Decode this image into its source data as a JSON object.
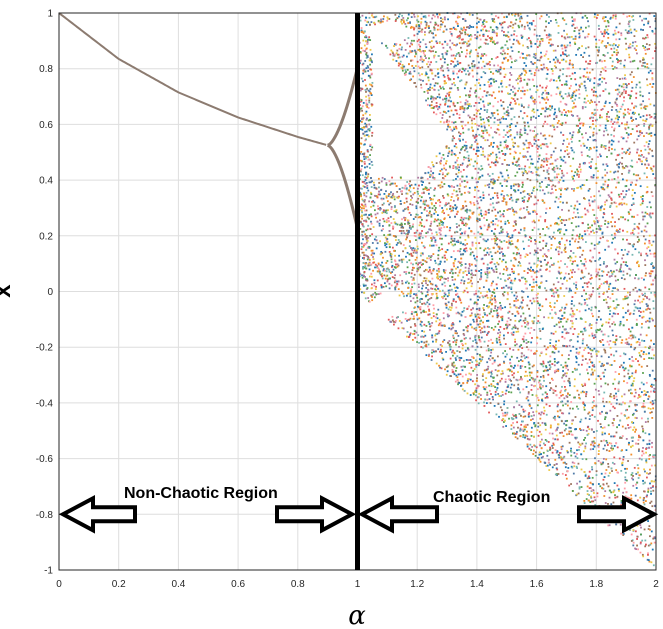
{
  "chart_data": {
    "type": "scatter",
    "title": "",
    "xlabel": "α",
    "ylabel": "x",
    "xlim": [
      0,
      2
    ],
    "ylim": [
      -1,
      1
    ],
    "x_ticks": [
      "0",
      "0.2",
      "0.4",
      "0.6",
      "0.8",
      "1",
      "1.2",
      "1.4",
      "1.6",
      "1.8",
      "2"
    ],
    "y_ticks": [
      "1",
      "0.8",
      "0.6",
      "0.4",
      "0.2",
      "0",
      "-0.2",
      "-0.4",
      "-0.6",
      "-0.8",
      "-1"
    ],
    "grid": true,
    "divider_alpha": 1,
    "regions": [
      {
        "label": "Non-Chaotic Region",
        "alpha_range": [
          0,
          1
        ]
      },
      {
        "label": "Chaotic Region",
        "alpha_range": [
          1,
          2
        ]
      }
    ],
    "stable_branch": {
      "alpha": [
        0,
        0.2,
        0.4,
        0.6,
        0.8,
        0.9
      ],
      "x": [
        1.0,
        0.835,
        0.715,
        0.625,
        0.555,
        0.525
      ]
    },
    "chaotic_band": {
      "alpha": [
        1.0,
        1.2,
        1.4,
        1.6,
        1.8,
        2.0
      ],
      "upper_x": [
        1.0,
        1.0,
        1.0,
        1.0,
        1.0,
        1.0
      ],
      "lower_x": [
        0.0,
        -0.2,
        -0.4,
        -0.6,
        -0.8,
        -1.0
      ]
    },
    "point_colors": [
      "#e15759",
      "#4e79a7",
      "#59a14f",
      "#f28e2b",
      "#b07aa1",
      "#edc948",
      "#76b7b2",
      "#ff9da7",
      "#9c755f",
      "#1f77b4"
    ]
  }
}
